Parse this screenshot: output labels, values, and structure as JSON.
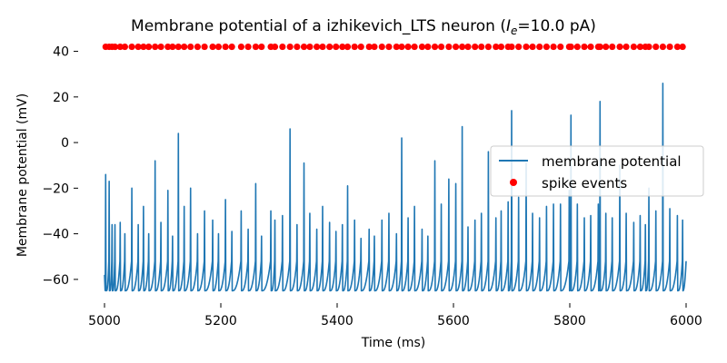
{
  "chart_data": {
    "type": "line",
    "title": "Membrane potential of a izhikevich_LTS neuron (",
    "title_math_base": "I",
    "title_math_sub": "e",
    "title_suffix": "=10.0 pA)",
    "xlabel": "Time (ms)",
    "ylabel": "Membrane potential (mV)",
    "xlim": [
      5000,
      6000
    ],
    "ylim": [
      -70,
      45
    ],
    "xticks": [
      5000,
      5200,
      5400,
      5600,
      5800,
      6000
    ],
    "yticks": [
      -60,
      -40,
      -20,
      0,
      20,
      40
    ],
    "grid": false,
    "legend_position": "right",
    "series": [
      {
        "name": "membrane potential",
        "color": "#1f77b4",
        "kind": "line",
        "reset_mV": -65,
        "end_value_mV": -52,
        "spike_peaks": [
          [
            5002,
            -14
          ],
          [
            5008,
            -17
          ],
          [
            5013,
            -36
          ],
          [
            5018,
            -36
          ],
          [
            5027,
            -35
          ],
          [
            5035,
            -40
          ],
          [
            5047,
            -20
          ],
          [
            5058,
            -36
          ],
          [
            5067,
            -28
          ],
          [
            5076,
            -40
          ],
          [
            5087,
            -8
          ],
          [
            5097,
            -35
          ],
          [
            5109,
            -21
          ],
          [
            5117,
            -41
          ],
          [
            5127,
            4
          ],
          [
            5137,
            -28
          ],
          [
            5148,
            -20
          ],
          [
            5160,
            -40
          ],
          [
            5172,
            -30
          ],
          [
            5186,
            -34
          ],
          [
            5196,
            -40
          ],
          [
            5208,
            -25
          ],
          [
            5219,
            -39
          ],
          [
            5235,
            -30
          ],
          [
            5247,
            -38
          ],
          [
            5260,
            -18
          ],
          [
            5270,
            -41
          ],
          [
            5286,
            -30
          ],
          [
            5293,
            -34
          ],
          [
            5306,
            -32
          ],
          [
            5319,
            6
          ],
          [
            5331,
            -36
          ],
          [
            5343,
            -9
          ],
          [
            5353,
            -31
          ],
          [
            5365,
            -38
          ],
          [
            5375,
            -28
          ],
          [
            5387,
            -35
          ],
          [
            5398,
            -39
          ],
          [
            5409,
            -36
          ],
          [
            5418,
            -19
          ],
          [
            5430,
            -34
          ],
          [
            5441,
            -42
          ],
          [
            5455,
            -38
          ],
          [
            5464,
            -41
          ],
          [
            5477,
            -34
          ],
          [
            5489,
            -31
          ],
          [
            5502,
            -40
          ],
          [
            5511,
            2
          ],
          [
            5522,
            -33
          ],
          [
            5533,
            -28
          ],
          [
            5546,
            -38
          ],
          [
            5556,
            -41
          ],
          [
            5568,
            -8
          ],
          [
            5579,
            -27
          ],
          [
            5592,
            -16
          ],
          [
            5604,
            -18
          ],
          [
            5615,
            7
          ],
          [
            5625,
            -37
          ],
          [
            5637,
            -34
          ],
          [
            5648,
            -31
          ],
          [
            5660,
            -4
          ],
          [
            5673,
            -33
          ],
          [
            5682,
            -30
          ],
          [
            5694,
            -26
          ],
          [
            5700,
            14
          ],
          [
            5712,
            -24
          ],
          [
            5725,
            -9
          ],
          [
            5736,
            -31
          ],
          [
            5748,
            -33
          ],
          [
            5760,
            -28
          ],
          [
            5772,
            -27
          ],
          [
            5784,
            -27
          ],
          [
            5799,
            -21
          ],
          [
            5802,
            12
          ],
          [
            5813,
            -27
          ],
          [
            5825,
            -33
          ],
          [
            5836,
            -32
          ],
          [
            5849,
            -27
          ],
          [
            5852,
            18
          ],
          [
            5862,
            -31
          ],
          [
            5873,
            -33
          ],
          [
            5886,
            -10
          ],
          [
            5897,
            -31
          ],
          [
            5910,
            -35
          ],
          [
            5921,
            -32
          ],
          [
            5930,
            -36
          ],
          [
            5936,
            -20
          ],
          [
            5948,
            -30
          ],
          [
            5960,
            26
          ],
          [
            5972,
            -29
          ],
          [
            5985,
            -32
          ],
          [
            5994,
            -34
          ]
        ]
      },
      {
        "name": "spike events",
        "color": "#ff0000",
        "kind": "scatter",
        "y": 42,
        "x": [
          5002,
          5008,
          5013,
          5018,
          5027,
          5035,
          5047,
          5058,
          5067,
          5076,
          5087,
          5097,
          5109,
          5117,
          5127,
          5137,
          5148,
          5160,
          5172,
          5186,
          5196,
          5208,
          5219,
          5235,
          5247,
          5260,
          5270,
          5286,
          5293,
          5306,
          5319,
          5331,
          5343,
          5353,
          5365,
          5375,
          5387,
          5398,
          5409,
          5418,
          5430,
          5441,
          5455,
          5464,
          5477,
          5489,
          5502,
          5511,
          5522,
          5533,
          5546,
          5556,
          5568,
          5579,
          5592,
          5604,
          5615,
          5625,
          5637,
          5648,
          5660,
          5673,
          5682,
          5694,
          5700,
          5712,
          5725,
          5736,
          5748,
          5760,
          5772,
          5784,
          5799,
          5802,
          5813,
          5825,
          5836,
          5849,
          5852,
          5862,
          5873,
          5886,
          5897,
          5910,
          5921,
          5930,
          5936,
          5948,
          5960,
          5972,
          5985,
          5994
        ]
      }
    ]
  }
}
